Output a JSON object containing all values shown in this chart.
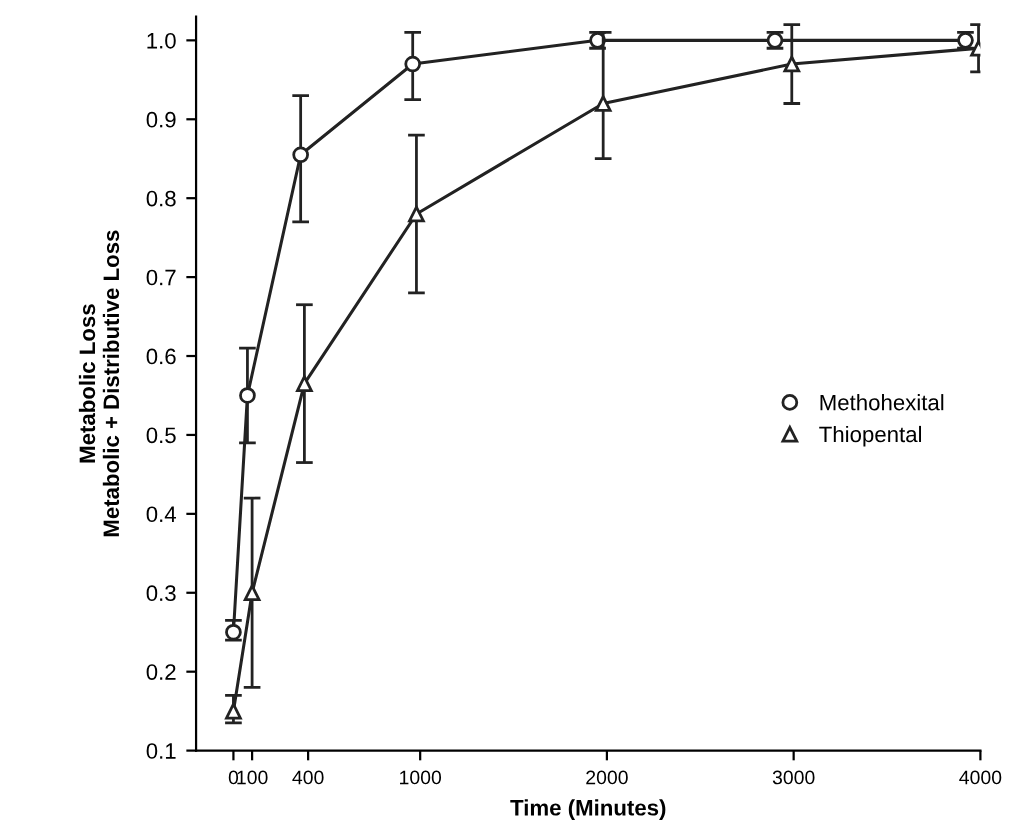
{
  "chart_data": {
    "type": "line",
    "xlabel": "Time (Minutes)",
    "ylabel": "Metabolic Loss\nMetabolic + Distributive Loss",
    "xlim": [
      -200,
      4000
    ],
    "xticks": [
      0,
      100,
      400,
      1000,
      2000,
      3000,
      4000
    ],
    "ylim": [
      0.1,
      1.03
    ],
    "yticks": [
      0.1,
      0.2,
      0.3,
      0.4,
      0.5,
      0.6,
      0.7,
      0.8,
      0.9,
      {
        "value": 1.0,
        "label": "1.0"
      }
    ],
    "grid": false,
    "legend": "right",
    "line_style": "solid",
    "series": [
      {
        "name": "Methohexital",
        "color": "#222222",
        "marker": "circle",
        "x": [
          0,
          75,
          360,
          960,
          1950,
          2900,
          3920
        ],
        "values": [
          0.25,
          0.55,
          0.855,
          0.97,
          1.0,
          1.0,
          1.0
        ],
        "errors": [
          [
            0.24,
            0.265
          ],
          [
            0.49,
            0.61
          ],
          [
            0.77,
            0.93
          ],
          [
            0.925,
            1.01
          ],
          [
            0.99,
            1.01
          ],
          [
            0.99,
            1.01
          ],
          [
            0.99,
            1.01
          ]
        ]
      },
      {
        "name": "Thiopental",
        "color": "#222222",
        "marker": "triangle",
        "x": [
          0,
          100,
          380,
          980,
          1980,
          2990,
          3990
        ],
        "values": [
          0.15,
          0.3,
          0.565,
          0.78,
          0.92,
          0.97,
          0.99
        ],
        "errors": [
          [
            0.135,
            0.17
          ],
          [
            0.18,
            0.42
          ],
          [
            0.465,
            0.665
          ],
          [
            0.68,
            0.88
          ],
          [
            0.85,
            1.01
          ],
          [
            0.92,
            1.02
          ],
          [
            0.96,
            1.02
          ]
        ]
      }
    ]
  }
}
